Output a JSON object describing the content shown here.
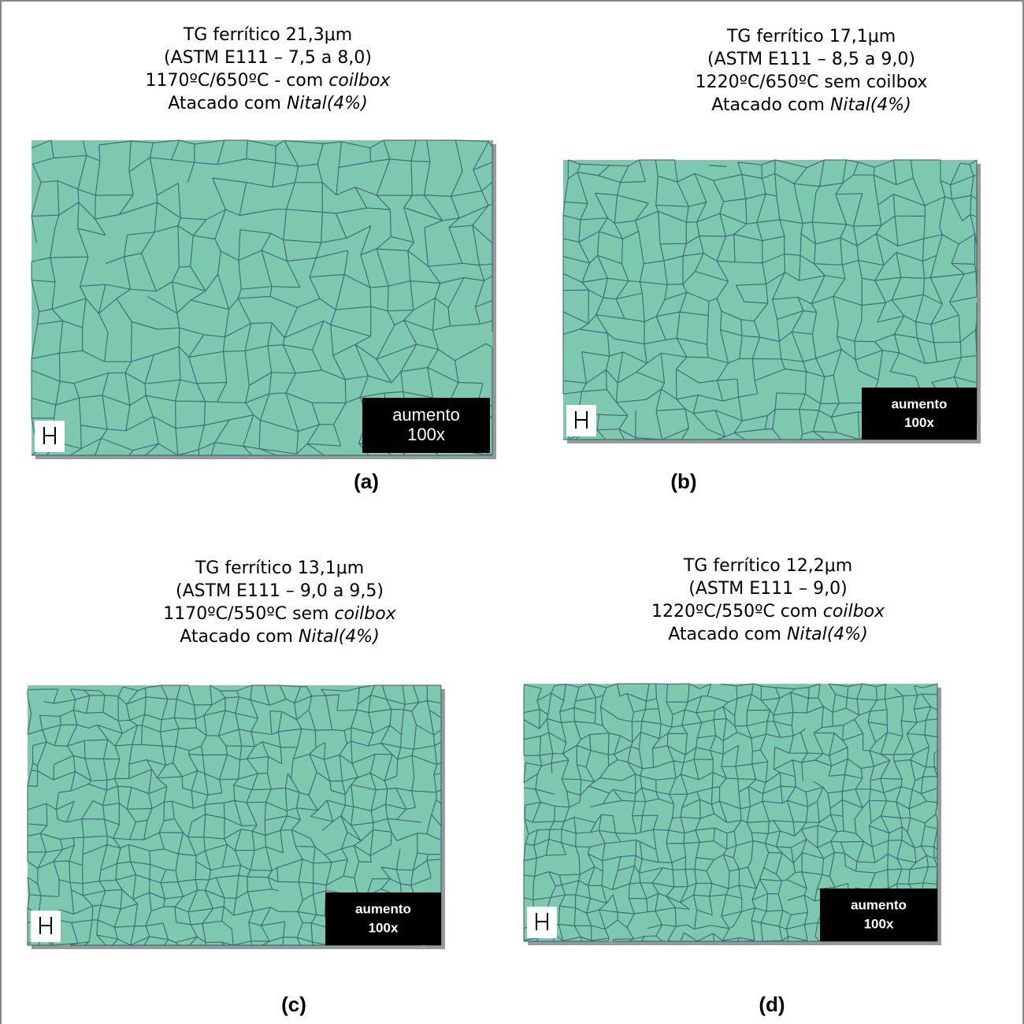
{
  "panels": [
    {
      "caption": [
        {
          "text": "TG ferrítico 21,3μm"
        },
        {
          "text": "(ASTM E111 – 7,5 a 8,0)"
        },
        {
          "text": "1170ºC/650ºC - com ",
          "italic": "coilbox"
        },
        {
          "text": "Atacado com ",
          "italic": "Nital(4%)"
        }
      ],
      "magnification": [
        "aumento",
        "100x"
      ],
      "label": "(a)"
    },
    {
      "caption": [
        {
          "text": "TG ferrítico 17,1μm"
        },
        {
          "text": "(ASTM E111 – 8,5 a 9,0)"
        },
        {
          "text": "1220ºC/650ºC sem coilbox"
        },
        {
          "text": "Atacado com ",
          "italic": "Nital(4%)"
        }
      ],
      "magnification": [
        "aumento",
        "100x"
      ],
      "label": "(b)"
    },
    {
      "caption": [
        {
          "text": "TG ferrítico 13,1μm"
        },
        {
          "text": "(ASTM E111 – 9,0 a 9,5)"
        },
        {
          "text": "1170ºC/550ºC sem ",
          "italic": "coilbox"
        },
        {
          "text": "Atacado com ",
          "italic": "Nital(4%)"
        }
      ],
      "magnification": [
        "aumento",
        "100x"
      ],
      "label": "(c)"
    },
    {
      "caption": [
        {
          "text": "TG ferrítico 12,2μm"
        },
        {
          "text": "(ASTM E111 – 9,0)"
        },
        {
          "text": "1220ºC/550ºC com ",
          "italic": "coilbox"
        },
        {
          "text": "Atacado com ",
          "italic": "Nital(4%)"
        }
      ],
      "magnification": [
        "aumento",
        "100x"
      ],
      "label": "(d)"
    }
  ]
}
